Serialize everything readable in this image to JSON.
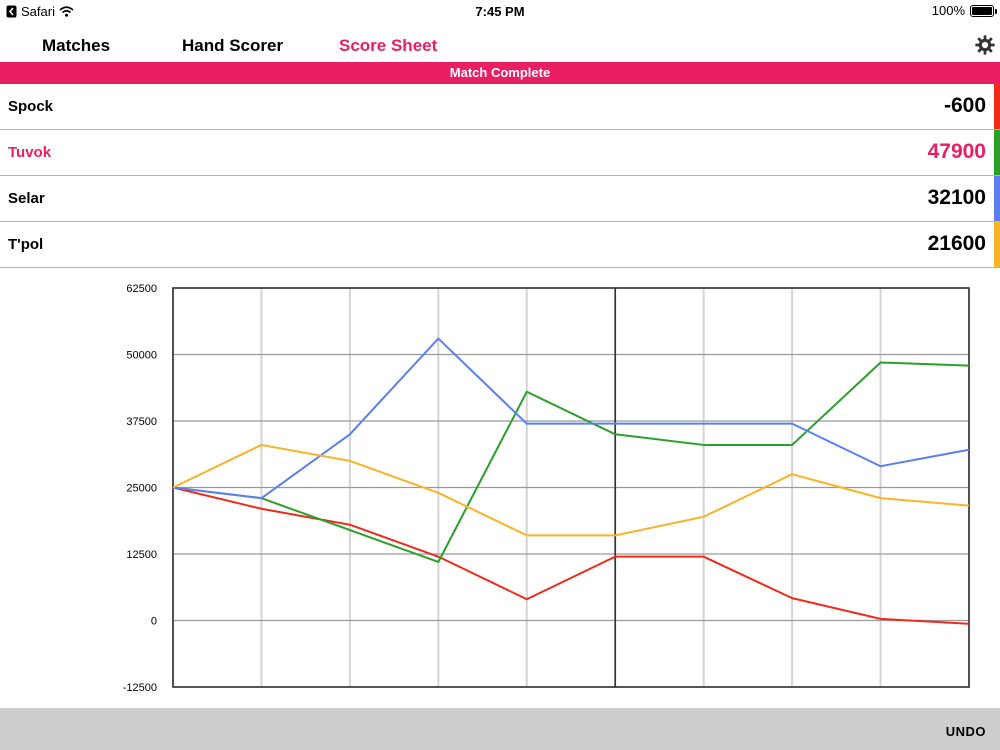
{
  "status_bar": {
    "back_app": "Safari",
    "time": "7:45 PM",
    "battery": "100%",
    "battery_level": 1.0
  },
  "nav": {
    "tabs": [
      {
        "label": "Matches",
        "active": false
      },
      {
        "label": "Hand Scorer",
        "active": false
      },
      {
        "label": "Score Sheet",
        "active": true
      }
    ],
    "settings_icon": "gear-icon"
  },
  "banner": {
    "text": "Match Complete",
    "color": "#e91e63"
  },
  "players": [
    {
      "name": "Spock",
      "score": "-600",
      "color": "#f02a1a",
      "highlight": false
    },
    {
      "name": "Tuvok",
      "score": "47900",
      "color": "#2aa02a",
      "highlight": true
    },
    {
      "name": "Selar",
      "score": "32100",
      "color": "#5b7ff2",
      "highlight": false
    },
    {
      "name": "T'pol",
      "score": "21600",
      "color": "#fbb226",
      "highlight": false
    }
  ],
  "chart_data": {
    "type": "line",
    "x": [
      0,
      1,
      2,
      3,
      4,
      5,
      6,
      7,
      8,
      9
    ],
    "ylim": [
      -12500,
      62500
    ],
    "y_ticks": [
      "62500",
      "50000",
      "37500",
      "25000",
      "12500",
      "0",
      "-12500"
    ],
    "y_tick_values": [
      62500,
      50000,
      37500,
      25000,
      12500,
      0,
      -12500
    ],
    "highlight_x": 5,
    "grid": true,
    "legend": "none",
    "series": [
      {
        "color": "#f02a1a",
        "values": [
          25000,
          21000,
          18000,
          12000,
          4000,
          12000,
          12000,
          4200,
          300,
          -600
        ]
      },
      {
        "color": "#2aa02a",
        "values": [
          25000,
          23000,
          17000,
          11000,
          43000,
          35000,
          33000,
          33000,
          48500,
          47900
        ]
      },
      {
        "color": "#5b7ff2",
        "values": [
          25000,
          23000,
          35000,
          53000,
          37000,
          37000,
          37000,
          37000,
          29000,
          32100
        ]
      },
      {
        "color": "#fbb226",
        "values": [
          25000,
          33000,
          30000,
          24000,
          16000,
          16000,
          19500,
          27500,
          23000,
          21600
        ]
      }
    ]
  },
  "bottom_bar": {
    "undo_label": "UNDO"
  }
}
